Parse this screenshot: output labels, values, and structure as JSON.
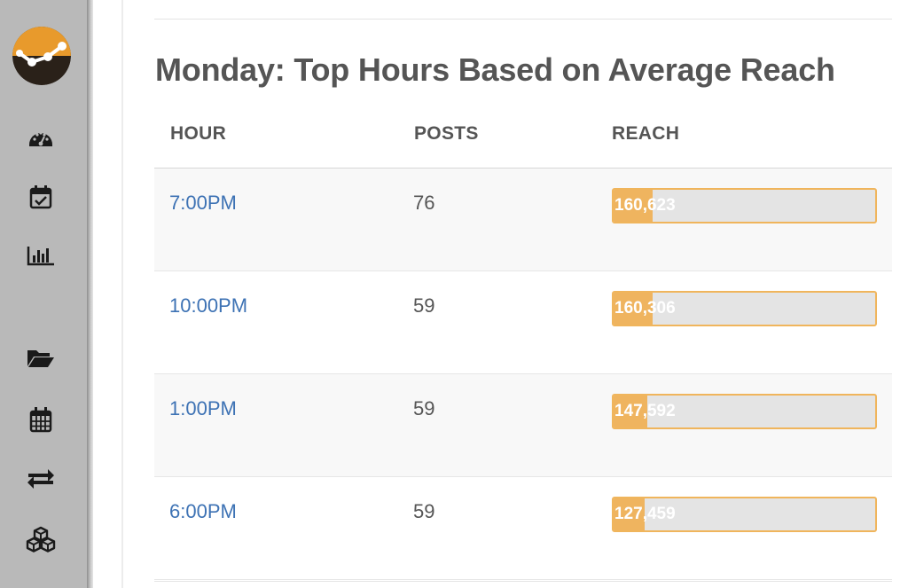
{
  "sidebar": {
    "logo": "analytics-logo",
    "items": [
      {
        "icon": "dashboard-gauge-icon"
      },
      {
        "icon": "calendar-check-icon"
      },
      {
        "icon": "bar-chart-icon"
      },
      {
        "icon": "folder-open-icon"
      },
      {
        "icon": "calendar-grid-icon"
      },
      {
        "icon": "exchange-arrows-icon"
      },
      {
        "icon": "cubes-icon"
      }
    ]
  },
  "page": {
    "title": "Monday: Top Hours Based on Average Reach"
  },
  "table": {
    "columns": [
      "HOUR",
      "POSTS",
      "REACH"
    ],
    "rows": [
      {
        "hour": "7:00PM",
        "posts": "76",
        "reach": "160,623",
        "fill": 0.15
      },
      {
        "hour": "10:00PM",
        "posts": "59",
        "reach": "160,306",
        "fill": 0.15
      },
      {
        "hour": "1:00PM",
        "posts": "59",
        "reach": "147,592",
        "fill": 0.13
      },
      {
        "hour": "6:00PM",
        "posts": "59",
        "reach": "127,459",
        "fill": 0.12
      }
    ]
  },
  "colors": {
    "accent": "#efb45f",
    "link": "#3d72b4",
    "sidebar": "#b9b9b9"
  }
}
